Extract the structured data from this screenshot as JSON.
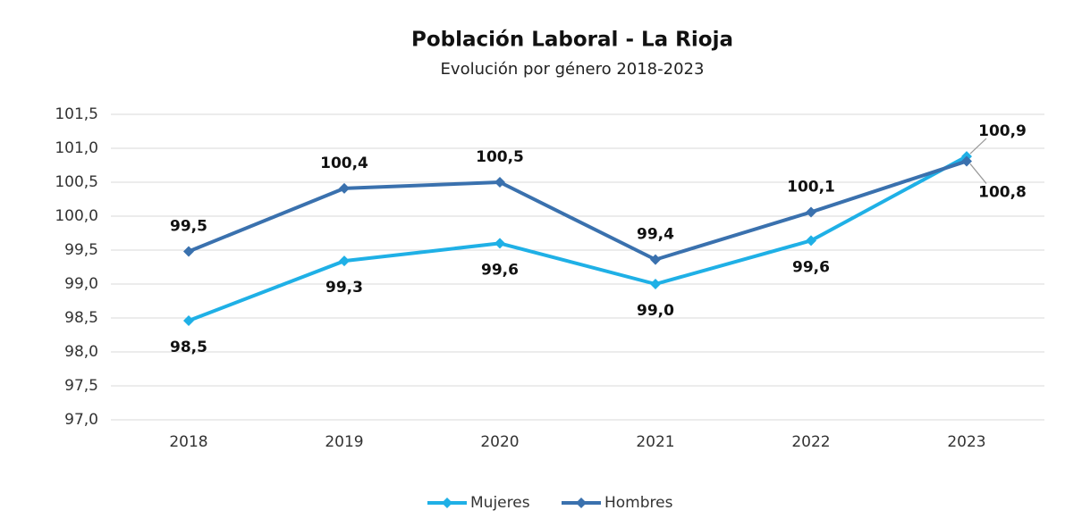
{
  "chart_data": {
    "type": "line",
    "title": "Población Laboral - La Rioja",
    "subtitle": "Evolución por género 2018-2023",
    "categories": [
      "2018",
      "2019",
      "2020",
      "2021",
      "2022",
      "2023"
    ],
    "series": [
      {
        "name": "Mujeres",
        "color": "#1fb0e6",
        "values": [
          98.46,
          99.34,
          99.6,
          99.0,
          99.64,
          100.88
        ],
        "value_labels": [
          "98,5",
          "99,3",
          "99,6",
          "99,0",
          "99,6",
          "100,9"
        ]
      },
      {
        "name": "Hombres",
        "color": "#3a71ae",
        "values": [
          99.48,
          100.41,
          100.5,
          99.36,
          100.06,
          100.81
        ],
        "value_labels": [
          "99,5",
          "100,4",
          "100,5",
          "99,4",
          "100,1",
          "100,8"
        ]
      }
    ],
    "ylim": [
      97.0,
      101.5
    ],
    "yticks": [
      {
        "value": 97.0,
        "label": "97,0"
      },
      {
        "value": 97.5,
        "label": "97,5"
      },
      {
        "value": 98.0,
        "label": "98,0"
      },
      {
        "value": 98.5,
        "label": "98,5"
      },
      {
        "value": 99.0,
        "label": "99,0"
      },
      {
        "value": 99.5,
        "label": "99,5"
      },
      {
        "value": 100.0,
        "label": "100,0"
      },
      {
        "value": 100.5,
        "label": "100,5"
      },
      {
        "value": 101.0,
        "label": "101,0"
      },
      {
        "value": 101.5,
        "label": "101,5"
      }
    ],
    "grid": true,
    "legend": "bottom"
  }
}
